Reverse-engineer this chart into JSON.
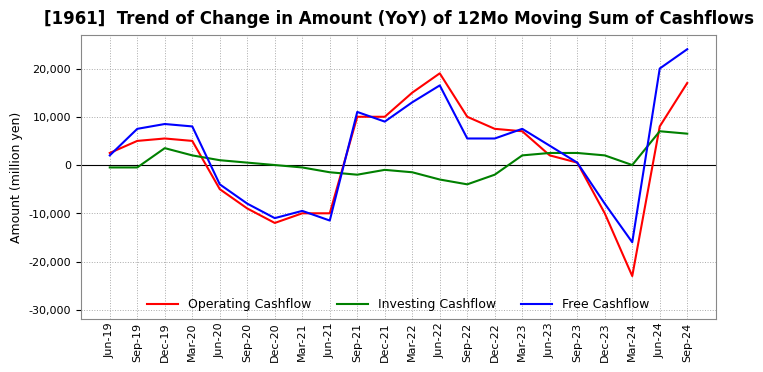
{
  "title": "[1961]  Trend of Change in Amount (YoY) of 12Mo Moving Sum of Cashflows",
  "ylabel": "Amount (million yen)",
  "ylim": [
    -32000,
    27000
  ],
  "yticks": [
    -30000,
    -20000,
    -10000,
    0,
    10000,
    20000
  ],
  "background_color": "#ffffff",
  "grid_color": "#aaaaaa",
  "x_labels": [
    "Jun-19",
    "Sep-19",
    "Dec-19",
    "Mar-20",
    "Jun-20",
    "Sep-20",
    "Dec-20",
    "Mar-21",
    "Jun-21",
    "Sep-21",
    "Dec-21",
    "Mar-22",
    "Jun-22",
    "Sep-22",
    "Dec-22",
    "Mar-23",
    "Jun-23",
    "Sep-23",
    "Dec-23",
    "Mar-24",
    "Jun-24",
    "Sep-24"
  ],
  "operating": [
    2500,
    5000,
    5500,
    5000,
    -5000,
    -9000,
    -12000,
    -10000,
    -10000,
    10000,
    10000,
    15000,
    19000,
    10000,
    7500,
    7000,
    2000,
    500,
    -10000,
    -23000,
    8000,
    17000
  ],
  "investing": [
    -500,
    -500,
    3500,
    2000,
    1000,
    500,
    0,
    -500,
    -1500,
    -2000,
    -1000,
    -1500,
    -3000,
    -4000,
    -2000,
    2000,
    2500,
    2500,
    2000,
    0,
    7000,
    6500
  ],
  "free": [
    2000,
    7500,
    8500,
    8000,
    -4000,
    -8000,
    -11000,
    -9500,
    -11500,
    11000,
    9000,
    13000,
    16500,
    5500,
    5500,
    7500,
    4000,
    500,
    -8000,
    -16000,
    20000,
    24000
  ],
  "operating_color": "#ff0000",
  "investing_color": "#008000",
  "free_color": "#0000ff",
  "line_width": 1.5,
  "title_fontsize": 12,
  "label_fontsize": 9,
  "tick_fontsize": 8
}
